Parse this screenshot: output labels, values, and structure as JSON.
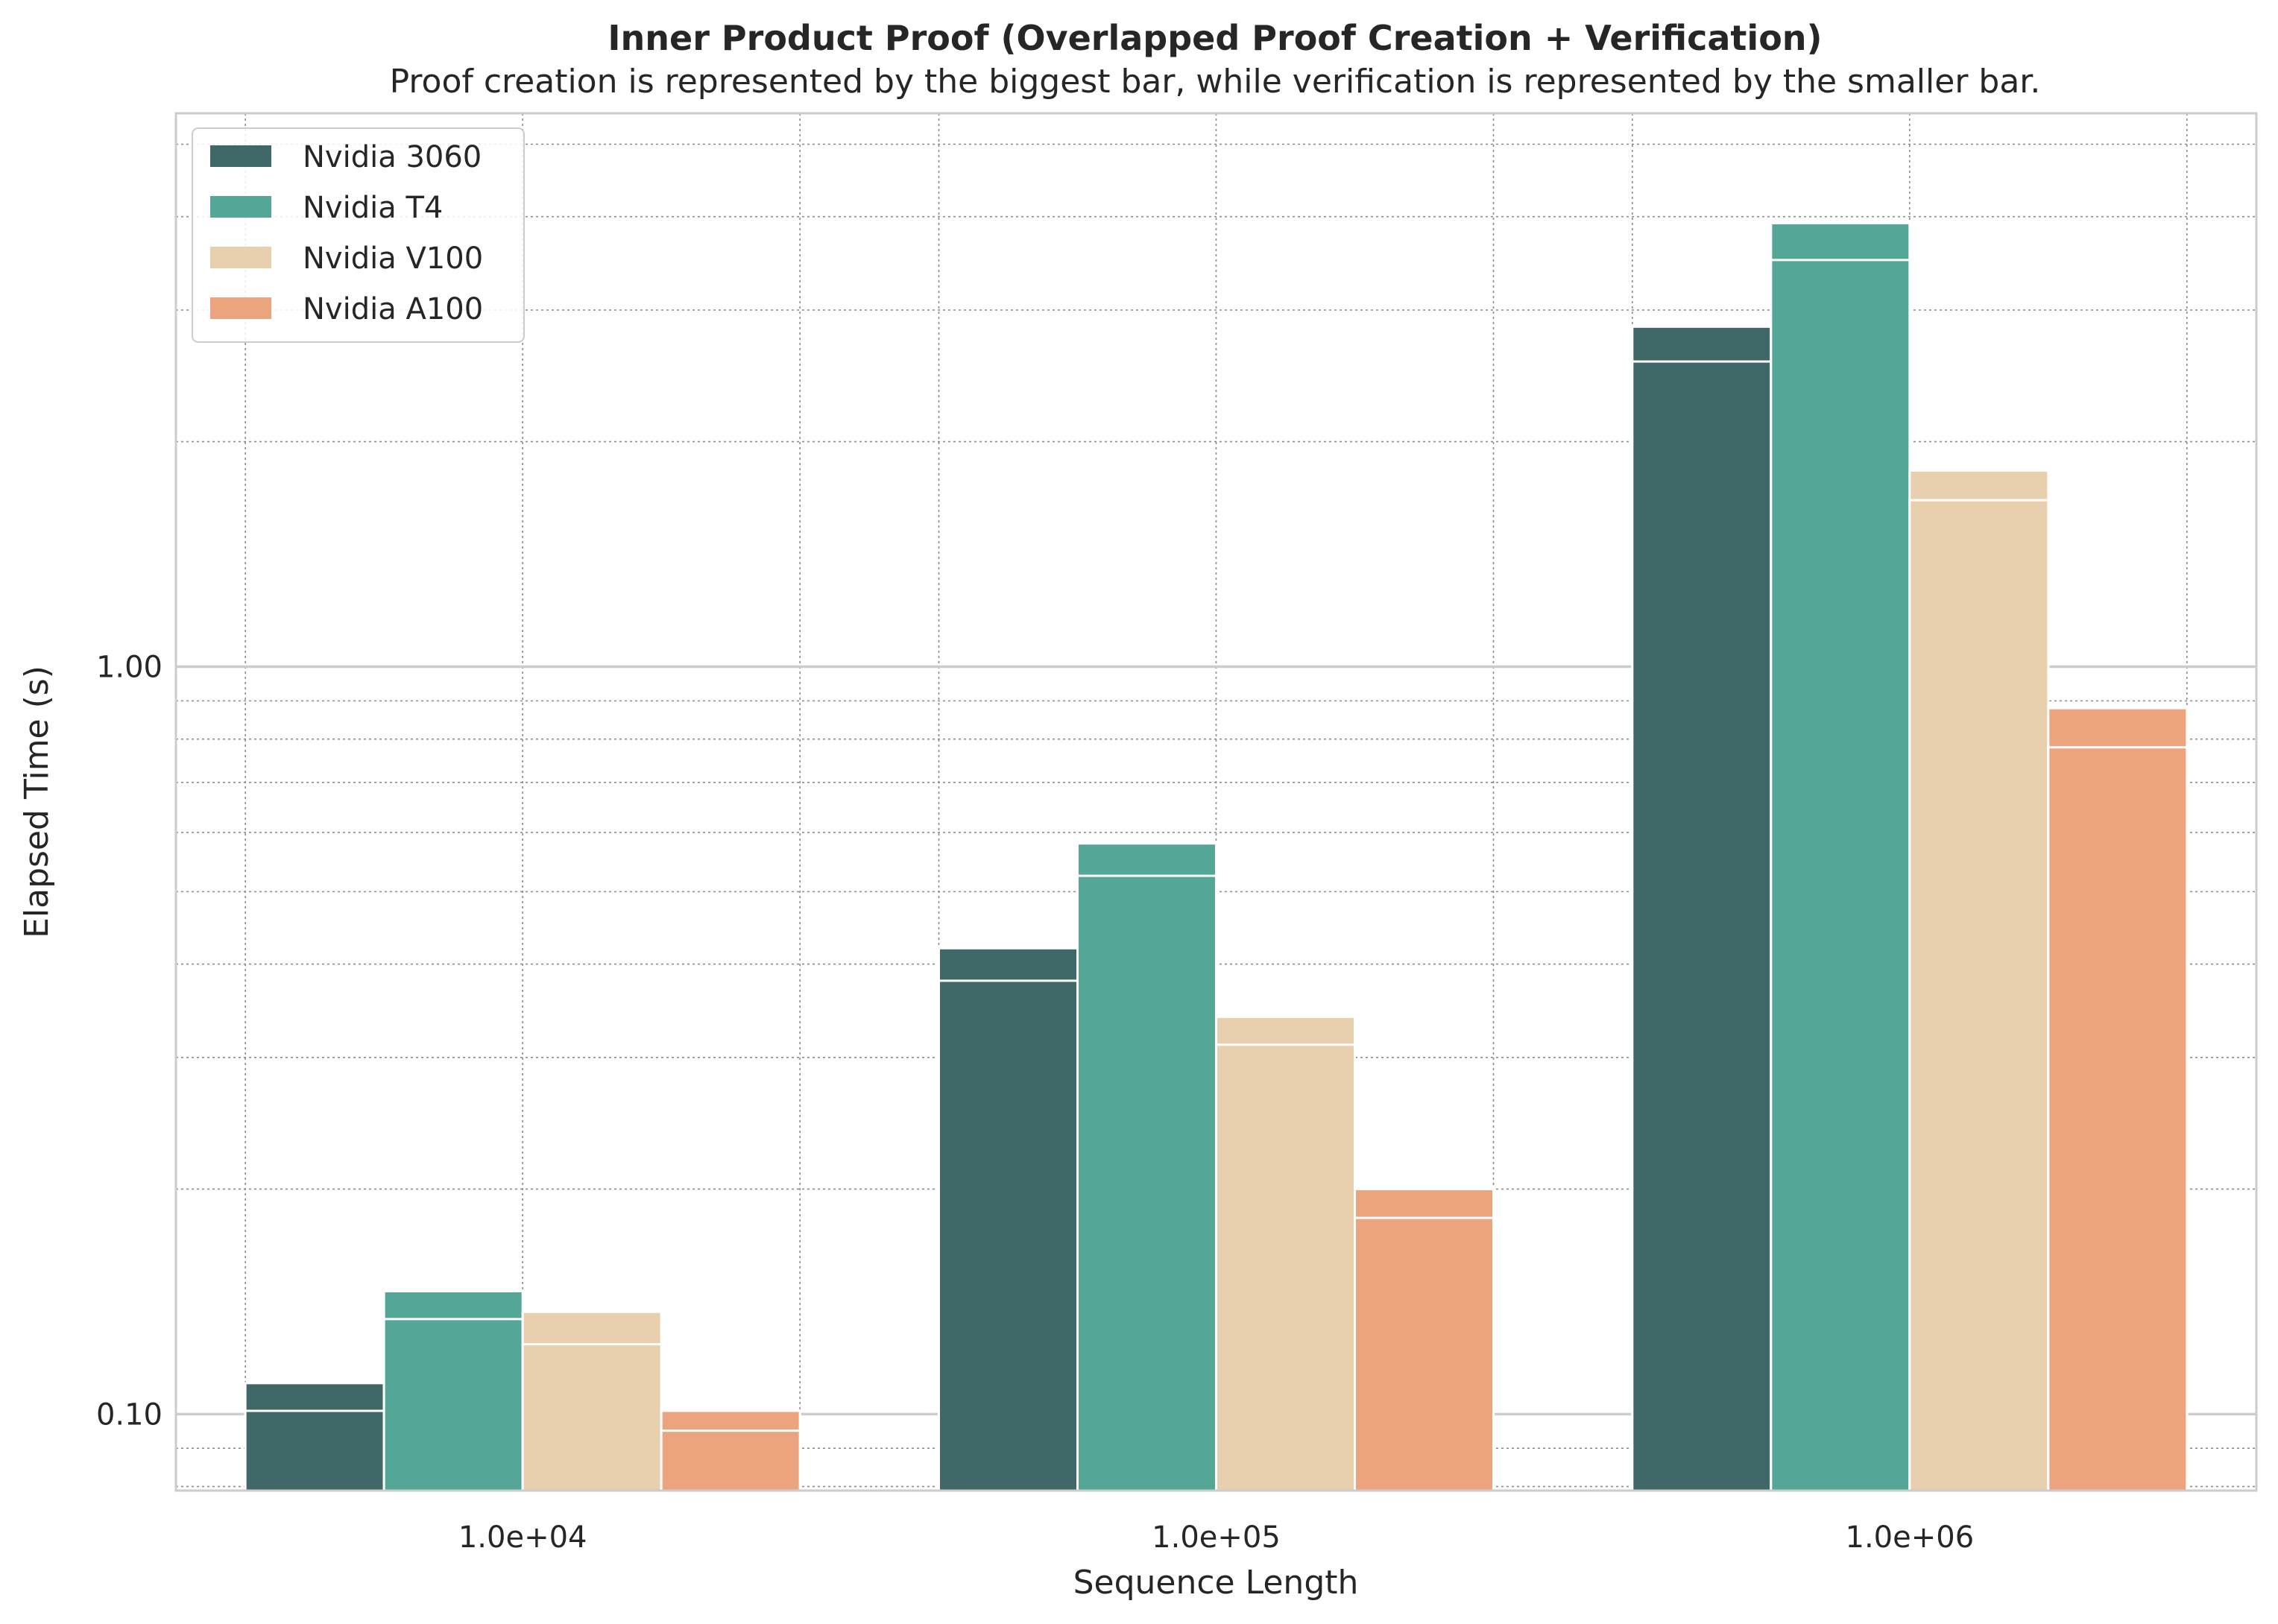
{
  "chart_data": {
    "type": "bar",
    "title": "Inner Product Proof (Overlapped Proof Creation + Verification)",
    "subtitle": "Proof creation is represented by the biggest bar, while verification is represented by the smaller bar.",
    "xlabel": "Sequence Length",
    "ylabel": "Elapsed Time (s)",
    "categories": [
      "1.0e+04",
      "1.0e+05",
      "1.0e+06"
    ],
    "yscale": "log",
    "ylim": [
      0.079,
      5.5
    ],
    "yticks": [
      {
        "value": 0.1,
        "label": "0.10"
      },
      {
        "value": 1.0,
        "label": "1.00"
      }
    ],
    "grid": true,
    "legend_position": "top-left",
    "series": [
      {
        "name": "Nvidia 3060",
        "color": "#416868",
        "values": [
          0.11,
          0.42,
          2.85
        ],
        "verification": [
          0.101,
          0.38,
          2.56
        ]
      },
      {
        "name": "Nvidia T4",
        "color": "#54a696",
        "values": [
          0.146,
          0.58,
          3.92
        ],
        "verification": [
          0.134,
          0.525,
          3.5
        ]
      },
      {
        "name": "Nvidia V100",
        "color": "#e8cfad",
        "values": [
          0.137,
          0.34,
          1.83
        ],
        "verification": [
          0.124,
          0.312,
          1.67
        ]
      },
      {
        "name": "Nvidia A100",
        "color": "#eca47e",
        "values": [
          0.101,
          0.2,
          0.88
        ],
        "verification": [
          0.095,
          0.183,
          0.78
        ]
      }
    ]
  }
}
